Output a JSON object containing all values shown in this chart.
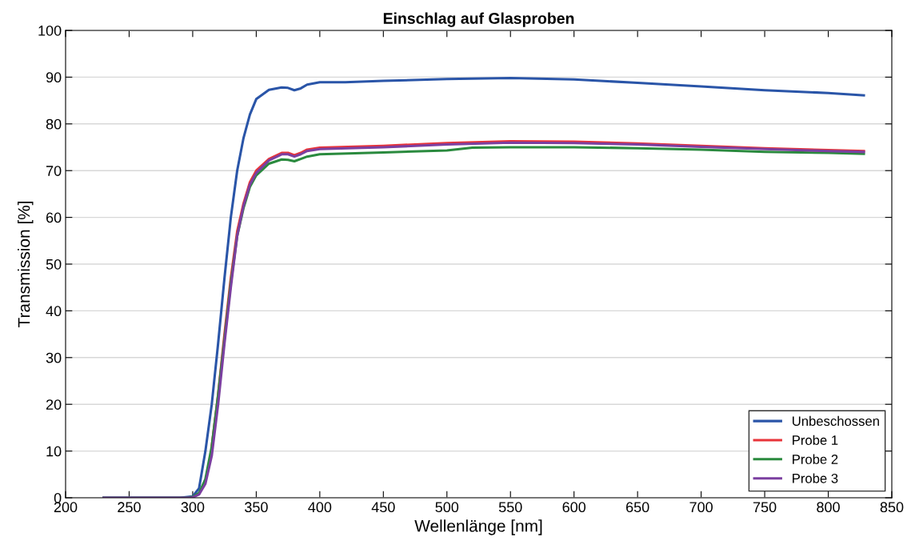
{
  "chart_data": {
    "type": "line",
    "title": "Einschlag auf Glasproben",
    "xlabel": "Wellenlänge [nm]",
    "ylabel": "Transmission [%]",
    "xlim": [
      200,
      850
    ],
    "xticks": [
      200,
      250,
      300,
      350,
      400,
      450,
      500,
      550,
      600,
      650,
      700,
      750,
      800,
      850
    ],
    "ylim": [
      0,
      100
    ],
    "yticks": [
      0,
      10,
      20,
      30,
      40,
      50,
      60,
      70,
      80,
      90,
      100
    ],
    "grid": "y",
    "legend": "bottom right",
    "marker": "none",
    "line_style": "solid",
    "series": [
      {
        "name": "Unbeschossen",
        "color": "#2a55a8",
        "x": [
          230,
          290,
          300,
          305,
          310,
          315,
          320,
          325,
          330,
          335,
          340,
          345,
          350,
          360,
          370,
          375,
          380,
          385,
          390,
          400,
          420,
          450,
          500,
          550,
          600,
          650,
          700,
          750,
          800,
          828
        ],
        "values": [
          0,
          0,
          0.3,
          2,
          10,
          20,
          33,
          47,
          60,
          70,
          77,
          82,
          85.3,
          87.3,
          87.8,
          87.7,
          87.2,
          87.6,
          88.4,
          88.9,
          88.9,
          89.2,
          89.6,
          89.8,
          89.5,
          88.8,
          88.0,
          87.2,
          86.6,
          86.1
        ]
      },
      {
        "name": "Probe 1",
        "color": "#e8343a",
        "x": [
          315,
          320,
          325,
          330,
          335,
          340,
          345,
          350,
          360,
          370,
          375,
          380,
          385,
          390,
          400,
          450,
          500,
          550,
          600,
          650,
          700,
          750,
          800,
          828
        ],
        "values": [
          11,
          22,
          35,
          47,
          57,
          63,
          67.5,
          70,
          72.5,
          73.8,
          73.8,
          73.3,
          73.8,
          74.5,
          74.9,
          75.3,
          75.9,
          76.3,
          76.2,
          75.8,
          75.3,
          74.8,
          74.4,
          74.2
        ]
      },
      {
        "name": "Probe 2",
        "color": "#2a8a3e",
        "x": [
          230,
          295,
          300,
          305,
          310,
          315,
          320,
          325,
          330,
          335,
          340,
          345,
          350,
          360,
          370,
          375,
          380,
          385,
          390,
          400,
          450,
          500,
          520,
          550,
          600,
          650,
          700,
          750,
          800,
          828
        ],
        "values": [
          0,
          0,
          0.2,
          1,
          4,
          11,
          22,
          34,
          46,
          56,
          62,
          66.5,
          69,
          71.5,
          72.4,
          72.3,
          72.0,
          72.5,
          73.0,
          73.5,
          73.9,
          74.3,
          74.9,
          75.0,
          75.0,
          74.8,
          74.5,
          74.0,
          73.8,
          73.6
        ]
      },
      {
        "name": "Probe 3",
        "color": "#7b3fa0",
        "x": [
          230,
          295,
          300,
          305,
          310,
          315,
          320,
          325,
          330,
          335,
          340,
          345,
          350,
          360,
          370,
          375,
          380,
          385,
          390,
          400,
          450,
          500,
          550,
          600,
          650,
          700,
          750,
          800,
          828
        ],
        "values": [
          0,
          0,
          0.1,
          0.7,
          3,
          9,
          20,
          33,
          45,
          56,
          62.5,
          67,
          69.5,
          72.2,
          73.5,
          73.5,
          73.0,
          73.5,
          74.2,
          74.6,
          75.0,
          75.6,
          76.0,
          75.9,
          75.6,
          75.1,
          74.6,
          74.2,
          74.0
        ]
      }
    ]
  }
}
